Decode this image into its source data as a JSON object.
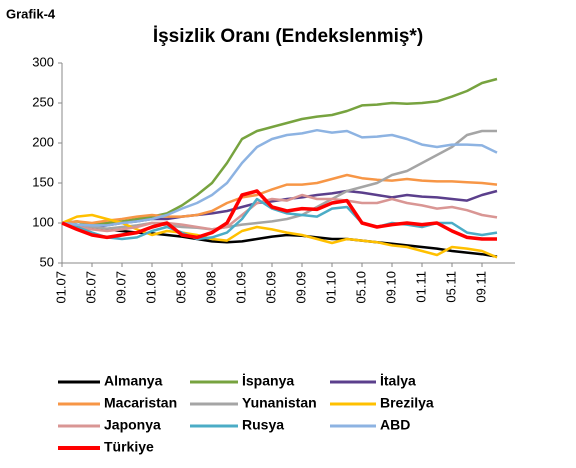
{
  "chart_data": {
    "type": "line",
    "label": "Grafik-4",
    "title": "İşsizlik Oranı (Endekslenmiş*)",
    "categories": [
      "01.07",
      null,
      "05.07",
      null,
      "09.07",
      null,
      "01.08",
      null,
      "05.08",
      null,
      "09.08",
      null,
      "01.09",
      null,
      "05.09",
      null,
      "09.09",
      null,
      "01.10",
      null,
      "05.10",
      null,
      "09.10",
      null,
      "01.11",
      null,
      "05.11",
      null,
      "09.11",
      null
    ],
    "ylim": [
      50,
      300
    ],
    "yticks": [
      50,
      100,
      150,
      200,
      250,
      300
    ],
    "grid": false,
    "series": [
      {
        "name": "Almanya",
        "color": "#000000",
        "values": [
          100,
          98,
          95,
          92,
          90,
          88,
          87,
          85,
          83,
          80,
          77,
          76,
          77,
          80,
          83,
          85,
          84,
          82,
          80,
          80,
          78,
          76,
          74,
          72,
          70,
          68,
          65,
          63,
          61,
          58
        ]
      },
      {
        "name": "İspanya",
        "color": "#77a33f",
        "values": [
          100,
          102,
          98,
          100,
          102,
          105,
          108,
          112,
          122,
          135,
          150,
          175,
          205,
          215,
          220,
          225,
          230,
          233,
          235,
          240,
          247,
          248,
          250,
          249,
          250,
          252,
          258,
          265,
          275,
          280
        ]
      },
      {
        "name": "İtalya",
        "color": "#5b3f8c",
        "values": [
          100,
          97,
          95,
          97,
          100,
          102,
          105,
          105,
          108,
          110,
          112,
          115,
          120,
          125,
          127,
          130,
          132,
          135,
          137,
          140,
          138,
          135,
          132,
          135,
          133,
          132,
          130,
          128,
          135,
          140
        ]
      },
      {
        "name": "Macaristan",
        "color": "#f79646",
        "values": [
          100,
          102,
          100,
          103,
          105,
          108,
          110,
          108,
          108,
          110,
          115,
          125,
          132,
          135,
          142,
          148,
          148,
          150,
          155,
          160,
          156,
          154,
          153,
          155,
          153,
          152,
          152,
          151,
          150,
          148
        ]
      },
      {
        "name": "Yunanistan",
        "color": "#a5a5a5",
        "values": [
          100,
          98,
          95,
          93,
          95,
          97,
          100,
          97,
          95,
          94,
          92,
          95,
          98,
          100,
          102,
          105,
          110,
          120,
          130,
          140,
          145,
          150,
          160,
          165,
          175,
          185,
          195,
          210,
          215,
          215
        ]
      },
      {
        "name": "Brezilya",
        "color": "#ffc000",
        "values": [
          100,
          108,
          110,
          105,
          100,
          92,
          85,
          90,
          88,
          85,
          80,
          78,
          90,
          95,
          92,
          88,
          85,
          80,
          75,
          80,
          78,
          76,
          72,
          70,
          65,
          60,
          70,
          68,
          65,
          57
        ]
      },
      {
        "name": "Japonya",
        "color": "#d99694",
        "values": [
          100,
          95,
          92,
          90,
          92,
          95,
          100,
          100,
          98,
          95,
          92,
          95,
          110,
          125,
          130,
          128,
          135,
          130,
          130,
          128,
          125,
          125,
          130,
          125,
          122,
          118,
          120,
          116,
          110,
          107
        ]
      },
      {
        "name": "Rusya",
        "color": "#4bacc6",
        "values": [
          100,
          95,
          88,
          82,
          80,
          82,
          90,
          95,
          88,
          80,
          82,
          88,
          105,
          130,
          118,
          112,
          110,
          108,
          118,
          120,
          100,
          95,
          100,
          98,
          95,
          100,
          100,
          88,
          85,
          88
        ]
      },
      {
        "name": "ABD",
        "color": "#8db3e2",
        "values": [
          100,
          98,
          97,
          97,
          100,
          102,
          105,
          110,
          118,
          125,
          135,
          150,
          175,
          195,
          205,
          210,
          212,
          216,
          213,
          215,
          207,
          208,
          210,
          205,
          198,
          195,
          198,
          198,
          197,
          188
        ]
      },
      {
        "name": "Türkiye",
        "color": "#ff0000",
        "values": [
          100,
          92,
          85,
          82,
          85,
          88,
          95,
          100,
          85,
          82,
          88,
          100,
          135,
          140,
          120,
          115,
          118,
          117,
          125,
          128,
          100,
          95,
          98,
          100,
          98,
          100,
          90,
          82,
          80,
          80
        ]
      }
    ]
  }
}
